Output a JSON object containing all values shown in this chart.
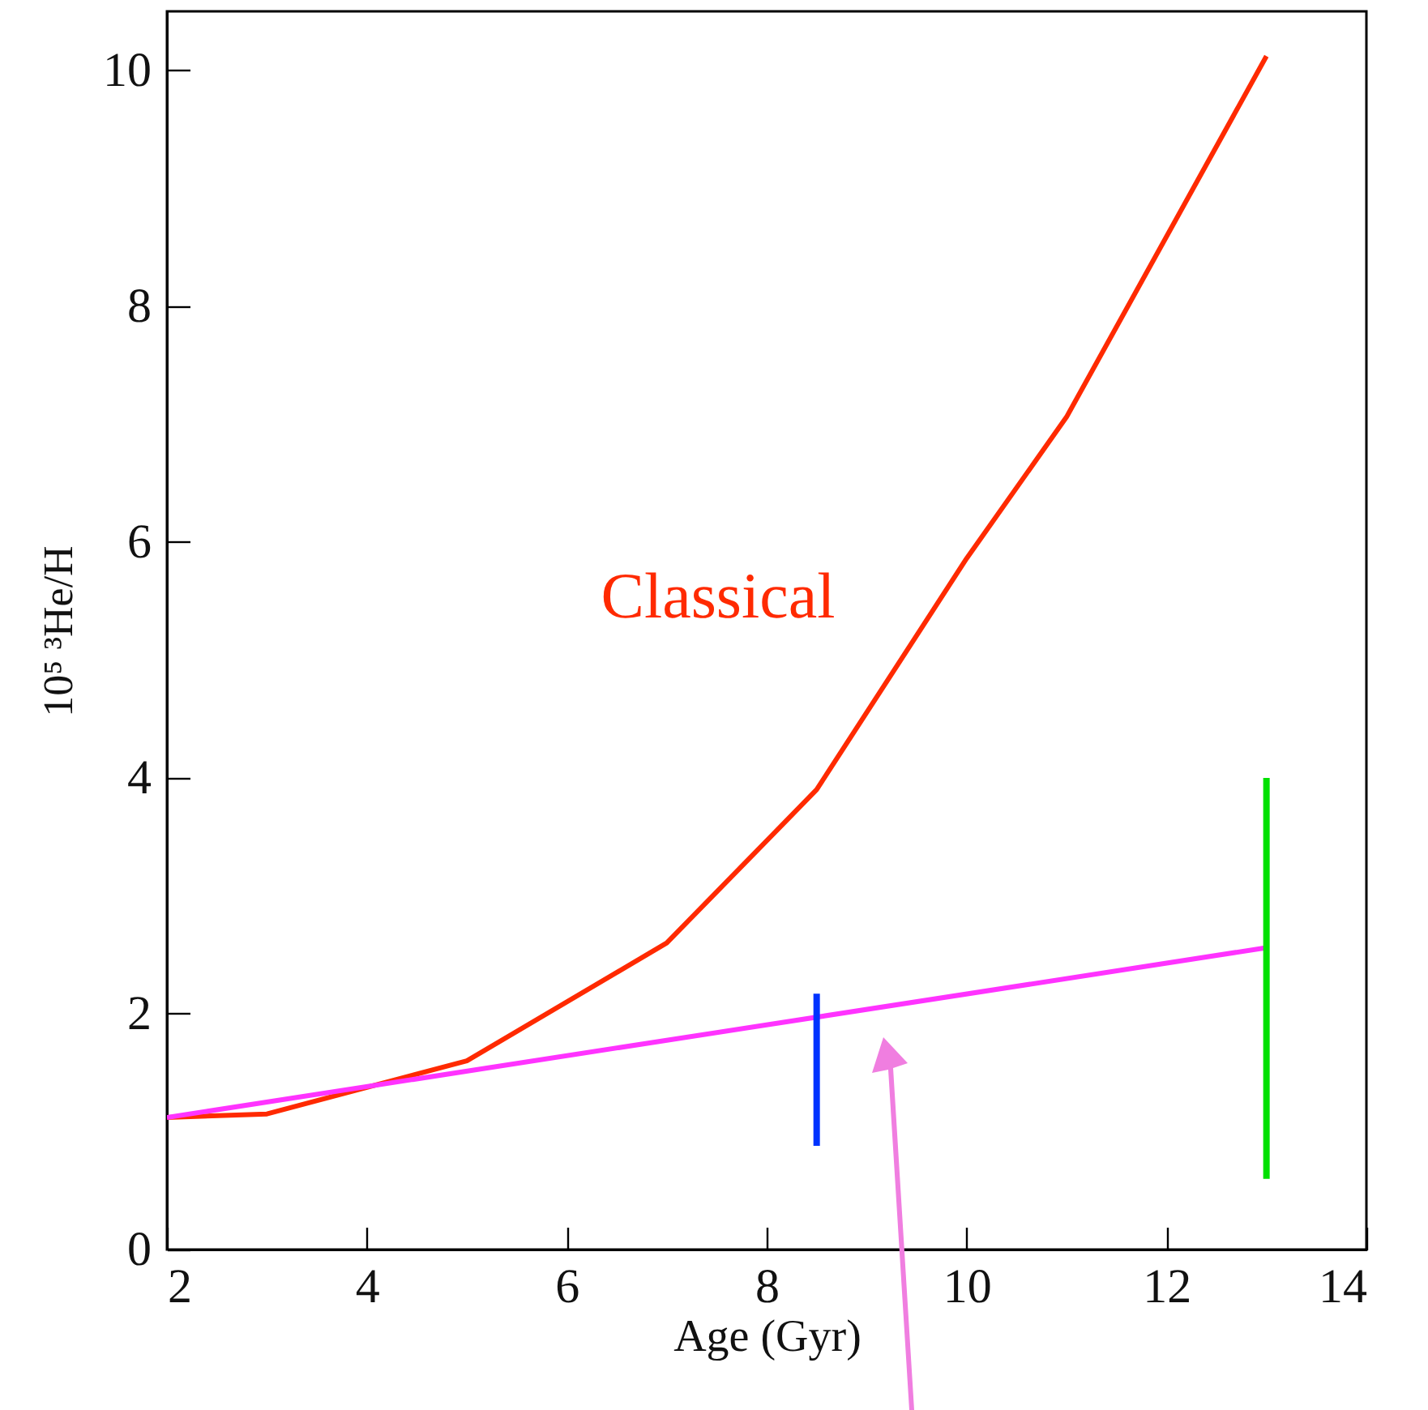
{
  "chart_data": {
    "type": "line",
    "xlabel": "Age (Gyr)",
    "ylabel": "10⁵ ³He/H",
    "xlim": [
      2,
      14
    ],
    "xticks": [
      2,
      4,
      6,
      8,
      10,
      12,
      14
    ],
    "ylim": [
      0,
      10.5
    ],
    "yticks": [
      0,
      2,
      4,
      6,
      8,
      10
    ],
    "grid": false,
    "marker": "none",
    "line_style": "solid",
    "series": [
      {
        "color": "#ff2a00",
        "x": [
          2,
          3,
          5,
          7,
          8.5,
          10,
          11,
          13
        ],
        "values": [
          1.12,
          1.15,
          1.6,
          2.6,
          3.9,
          5.86,
          7.06,
          10.12
        ]
      },
      {
        "color": "#ff33ff",
        "x": [
          2,
          13
        ],
        "values": [
          1.12,
          2.56
        ]
      },
      {
        "color": "#0033ff",
        "x": [
          8.5,
          8.5
        ],
        "values": [
          0.88,
          2.17
        ]
      },
      {
        "color": "#00e000",
        "x": [
          13,
          13
        ],
        "values": [
          0.6,
          4.0
        ]
      }
    ],
    "annotations": [
      "Classical"
    ]
  }
}
